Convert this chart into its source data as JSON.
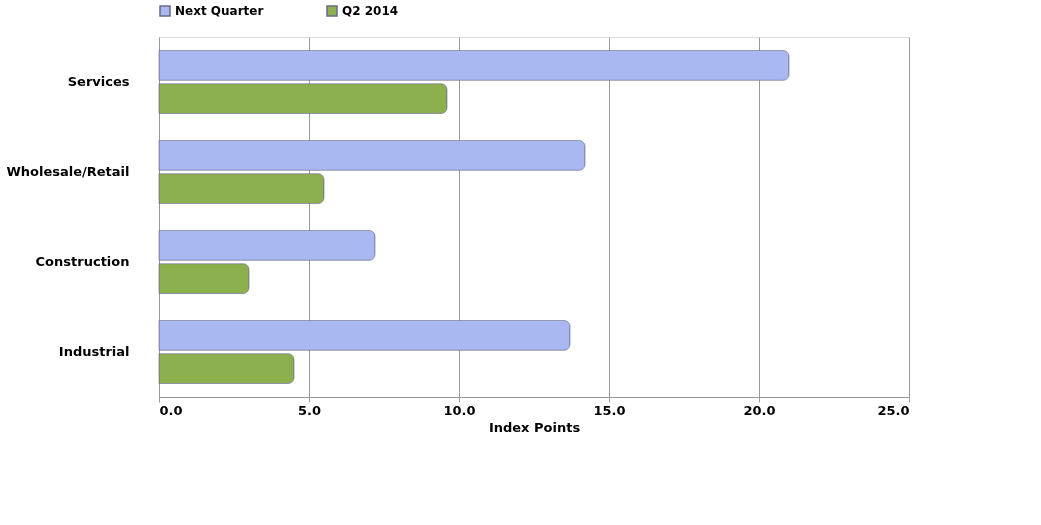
{
  "chart_data": {
    "type": "bar",
    "orientation": "horizontal",
    "xlabel": "Index Points",
    "categories": [
      "Services",
      "Wholesale/Retail",
      "Construction",
      "Industrial"
    ],
    "series": [
      {
        "name": "Next Quarter",
        "color": "#aab8f2",
        "values": [
          21.0,
          14.2,
          7.2,
          13.7
        ]
      },
      {
        "name": "Q2 2014",
        "color": "#8db04e",
        "values": [
          9.6,
          5.5,
          3.0,
          4.5
        ]
      }
    ],
    "xlim": [
      0,
      25
    ],
    "xticks": [
      {
        "value": 0,
        "label": "0.0"
      },
      {
        "value": 5,
        "label": "5.0"
      },
      {
        "value": 10,
        "label": "10.0"
      },
      {
        "value": 15,
        "label": "15.0"
      },
      {
        "value": 20,
        "label": "20.0"
      },
      {
        "value": 25,
        "label": "25.0"
      }
    ],
    "grid": "x",
    "legend": "top"
  }
}
